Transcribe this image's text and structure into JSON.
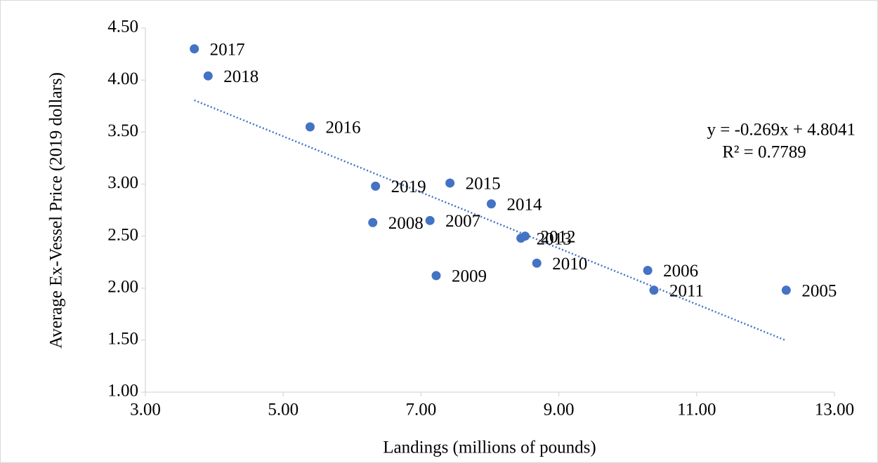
{
  "chart_data": {
    "type": "scatter",
    "x_label": "Landings (millions of pounds)",
    "y_label": "Average Ex-Vessel Price (2019 dollars)",
    "x": [
      3.71,
      3.91,
      5.39,
      6.34,
      7.42,
      8.02,
      6.3,
      7.13,
      8.51,
      8.45,
      8.68,
      7.22,
      10.29,
      10.38,
      12.3
    ],
    "values": [
      4.3,
      4.04,
      3.55,
      2.98,
      3.01,
      2.81,
      2.63,
      2.65,
      2.5,
      2.48,
      2.24,
      2.12,
      2.17,
      1.98,
      1.98
    ],
    "labels": [
      "2017",
      "2018",
      "2016",
      "2019",
      "2015",
      "2014",
      "2008",
      "2007",
      "2012",
      "2013",
      "2010",
      "2009",
      "2006",
      "2011",
      "2005"
    ],
    "color": "#4472c4",
    "xlim": [
      3,
      13
    ],
    "ylim": [
      1,
      4.5
    ],
    "xticks": [
      {
        "value": 3,
        "label": "3.00"
      },
      {
        "value": 5,
        "label": "5.00"
      },
      {
        "value": 7,
        "label": "7.00"
      },
      {
        "value": 9,
        "label": "9.00"
      },
      {
        "value": 11,
        "label": "11.00"
      },
      {
        "value": 13,
        "label": "13.00"
      }
    ],
    "yticks": [
      {
        "value": 1,
        "label": "1.00"
      },
      {
        "value": 1.5,
        "label": "1.50"
      },
      {
        "value": 2,
        "label": "2.00"
      },
      {
        "value": 2.5,
        "label": "2.50"
      },
      {
        "value": 3,
        "label": "3.00"
      },
      {
        "value": 3.5,
        "label": "3.50"
      },
      {
        "value": 4,
        "label": "4.00"
      },
      {
        "value": 4.5,
        "label": "4.50"
      }
    ],
    "trendline": {
      "slope": -0.269,
      "intercept": 4.8041,
      "equation": "y = -0.269x + 4.8041",
      "r_squared": "R² = 0.7789"
    }
  }
}
